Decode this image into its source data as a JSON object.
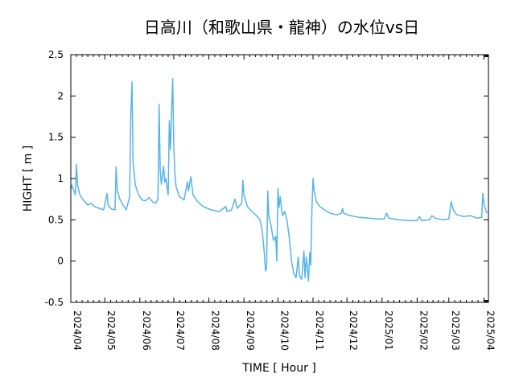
{
  "chart_data": {
    "type": "line",
    "title": "日高川（和歌山県・龍神）の水位vs日",
    "xlabel": "TIME [ Hour ]",
    "ylabel": "HIGHT [ m ]",
    "ylim": [
      -0.5,
      2.5
    ],
    "yticks": [
      "-0.5",
      "0",
      "0.5",
      "1",
      "1.5",
      "2",
      "2.5"
    ],
    "xlim": [
      "2024-04-01",
      "2025-04-05"
    ],
    "xticks": [
      {
        "date": "2024-04-01",
        "label": "2024/04"
      },
      {
        "date": "2024-05-01",
        "label": "2024/05"
      },
      {
        "date": "2024-06-01",
        "label": "2024/06"
      },
      {
        "date": "2024-07-01",
        "label": "2024/07"
      },
      {
        "date": "2024-08-01",
        "label": "2024/08"
      },
      {
        "date": "2024-09-01",
        "label": "2024/09"
      },
      {
        "date": "2024-10-01",
        "label": "2024/10"
      },
      {
        "date": "2024-11-01",
        "label": "2024/11"
      },
      {
        "date": "2024-12-01",
        "label": "2024/12"
      },
      {
        "date": "2025-01-01",
        "label": "2025/01"
      },
      {
        "date": "2025-02-01",
        "label": "2025/02"
      },
      {
        "date": "2025-03-01",
        "label": "2025/03"
      },
      {
        "date": "2025-04-01",
        "label": "2025/04"
      }
    ],
    "grid": false,
    "line_color": "#56b4e9",
    "series": [
      {
        "points": [
          [
            "2024-04-01",
            0.87
          ],
          [
            "2024-04-02",
            0.92
          ],
          [
            "2024-04-04",
            0.84
          ],
          [
            "2024-04-05",
            0.8
          ],
          [
            "2024-04-06",
            1.17
          ],
          [
            "2024-04-07",
            0.92
          ],
          [
            "2024-04-09",
            0.8
          ],
          [
            "2024-04-12",
            0.74
          ],
          [
            "2024-04-16",
            0.68
          ],
          [
            "2024-04-19",
            0.7
          ],
          [
            "2024-04-22",
            0.66
          ],
          [
            "2024-04-26",
            0.64
          ],
          [
            "2024-04-30",
            0.62
          ],
          [
            "2024-05-03",
            0.82
          ],
          [
            "2024-05-04",
            0.68
          ],
          [
            "2024-05-07",
            0.63
          ],
          [
            "2024-05-10",
            0.62
          ],
          [
            "2024-05-11",
            1.14
          ],
          [
            "2024-05-12",
            0.86
          ],
          [
            "2024-05-14",
            0.76
          ],
          [
            "2024-05-17",
            0.68
          ],
          [
            "2024-05-20",
            0.62
          ],
          [
            "2024-05-23",
            0.78
          ],
          [
            "2024-05-24",
            1.75
          ],
          [
            "2024-05-25",
            2.17
          ],
          [
            "2024-05-26",
            1.2
          ],
          [
            "2024-05-28",
            0.92
          ],
          [
            "2024-05-31",
            0.8
          ],
          [
            "2024-06-03",
            0.74
          ],
          [
            "2024-06-06",
            0.73
          ],
          [
            "2024-06-09",
            0.77
          ],
          [
            "2024-06-12",
            0.72
          ],
          [
            "2024-06-15",
            0.7
          ],
          [
            "2024-06-17",
            0.75
          ],
          [
            "2024-06-18",
            1.9
          ],
          [
            "2024-06-19",
            1.1
          ],
          [
            "2024-06-20",
            0.93
          ],
          [
            "2024-06-22",
            1.15
          ],
          [
            "2024-06-23",
            0.95
          ],
          [
            "2024-06-24",
            1.0
          ],
          [
            "2024-06-26",
            0.8
          ],
          [
            "2024-06-27",
            1.7
          ],
          [
            "2024-06-28",
            1.35
          ],
          [
            "2024-06-29",
            1.8
          ],
          [
            "2024-06-30",
            2.21
          ],
          [
            "2024-07-01",
            1.4
          ],
          [
            "2024-07-02",
            1.05
          ],
          [
            "2024-07-03",
            0.9
          ],
          [
            "2024-07-06",
            0.78
          ],
          [
            "2024-07-10",
            0.74
          ],
          [
            "2024-07-13",
            0.96
          ],
          [
            "2024-07-14",
            0.85
          ],
          [
            "2024-07-16",
            1.02
          ],
          [
            "2024-07-18",
            0.8
          ],
          [
            "2024-07-22",
            0.72
          ],
          [
            "2024-07-27",
            0.66
          ],
          [
            "2024-08-03",
            0.62
          ],
          [
            "2024-08-10",
            0.6
          ],
          [
            "2024-08-16",
            0.66
          ],
          [
            "2024-08-17",
            0.6
          ],
          [
            "2024-08-21",
            0.62
          ],
          [
            "2024-08-24",
            0.75
          ],
          [
            "2024-08-26",
            0.64
          ],
          [
            "2024-08-30",
            0.7
          ],
          [
            "2024-08-31",
            0.98
          ],
          [
            "2024-09-01",
            0.8
          ],
          [
            "2024-09-04",
            0.66
          ],
          [
            "2024-09-08",
            0.6
          ],
          [
            "2024-09-12",
            0.55
          ],
          [
            "2024-09-15",
            0.5
          ],
          [
            "2024-09-17",
            0.38
          ],
          [
            "2024-09-19",
            0.1
          ],
          [
            "2024-09-20",
            -0.12
          ],
          [
            "2024-09-21",
            -0.08
          ],
          [
            "2024-09-22",
            0.85
          ],
          [
            "2024-09-23",
            0.55
          ],
          [
            "2024-09-25",
            0.42
          ],
          [
            "2024-09-27",
            0.25
          ],
          [
            "2024-09-29",
            0.3
          ],
          [
            "2024-09-30",
            0.0
          ],
          [
            "2024-10-01",
            0.88
          ],
          [
            "2024-10-02",
            0.65
          ],
          [
            "2024-10-03",
            0.78
          ],
          [
            "2024-10-05",
            0.55
          ],
          [
            "2024-10-07",
            0.6
          ],
          [
            "2024-10-09",
            0.5
          ],
          [
            "2024-10-11",
            0.28
          ],
          [
            "2024-10-13",
            0.0
          ],
          [
            "2024-10-15",
            -0.15
          ],
          [
            "2024-10-17",
            -0.2
          ],
          [
            "2024-10-19",
            0.05
          ],
          [
            "2024-10-20",
            -0.18
          ],
          [
            "2024-10-22",
            -0.22
          ],
          [
            "2024-10-24",
            0.12
          ],
          [
            "2024-10-25",
            -0.2
          ],
          [
            "2024-10-26",
            0.05
          ],
          [
            "2024-10-28",
            -0.24
          ],
          [
            "2024-10-29",
            0.1
          ],
          [
            "2024-10-30",
            -0.05
          ],
          [
            "2024-10-31",
            0.62
          ],
          [
            "2024-11-01",
            1.0
          ],
          [
            "2024-11-02",
            0.85
          ],
          [
            "2024-11-04",
            0.72
          ],
          [
            "2024-11-07",
            0.66
          ],
          [
            "2024-11-11",
            0.62
          ],
          [
            "2024-11-16",
            0.58
          ],
          [
            "2024-11-22",
            0.56
          ],
          [
            "2024-11-26",
            0.58
          ],
          [
            "2024-11-27",
            0.64
          ],
          [
            "2024-11-28",
            0.58
          ],
          [
            "2024-12-04",
            0.55
          ],
          [
            "2024-12-12",
            0.53
          ],
          [
            "2024-12-20",
            0.52
          ],
          [
            "2024-12-28",
            0.51
          ],
          [
            "2025-01-03",
            0.51
          ],
          [
            "2025-01-05",
            0.58
          ],
          [
            "2025-01-07",
            0.52
          ],
          [
            "2025-01-15",
            0.5
          ],
          [
            "2025-01-25",
            0.49
          ],
          [
            "2025-02-01",
            0.49
          ],
          [
            "2025-02-03",
            0.54
          ],
          [
            "2025-02-05",
            0.49
          ],
          [
            "2025-02-12",
            0.5
          ],
          [
            "2025-02-14",
            0.55
          ],
          [
            "2025-02-17",
            0.52
          ],
          [
            "2025-02-24",
            0.5
          ],
          [
            "2025-03-01",
            0.51
          ],
          [
            "2025-03-03",
            0.72
          ],
          [
            "2025-03-05",
            0.62
          ],
          [
            "2025-03-08",
            0.56
          ],
          [
            "2025-03-14",
            0.54
          ],
          [
            "2025-03-20",
            0.55
          ],
          [
            "2025-03-26",
            0.52
          ],
          [
            "2025-03-30",
            0.53
          ],
          [
            "2025-03-31",
            0.82
          ],
          [
            "2025-04-01",
            0.7
          ],
          [
            "2025-04-03",
            0.6
          ],
          [
            "2025-04-04",
            0.58
          ]
        ]
      }
    ]
  }
}
